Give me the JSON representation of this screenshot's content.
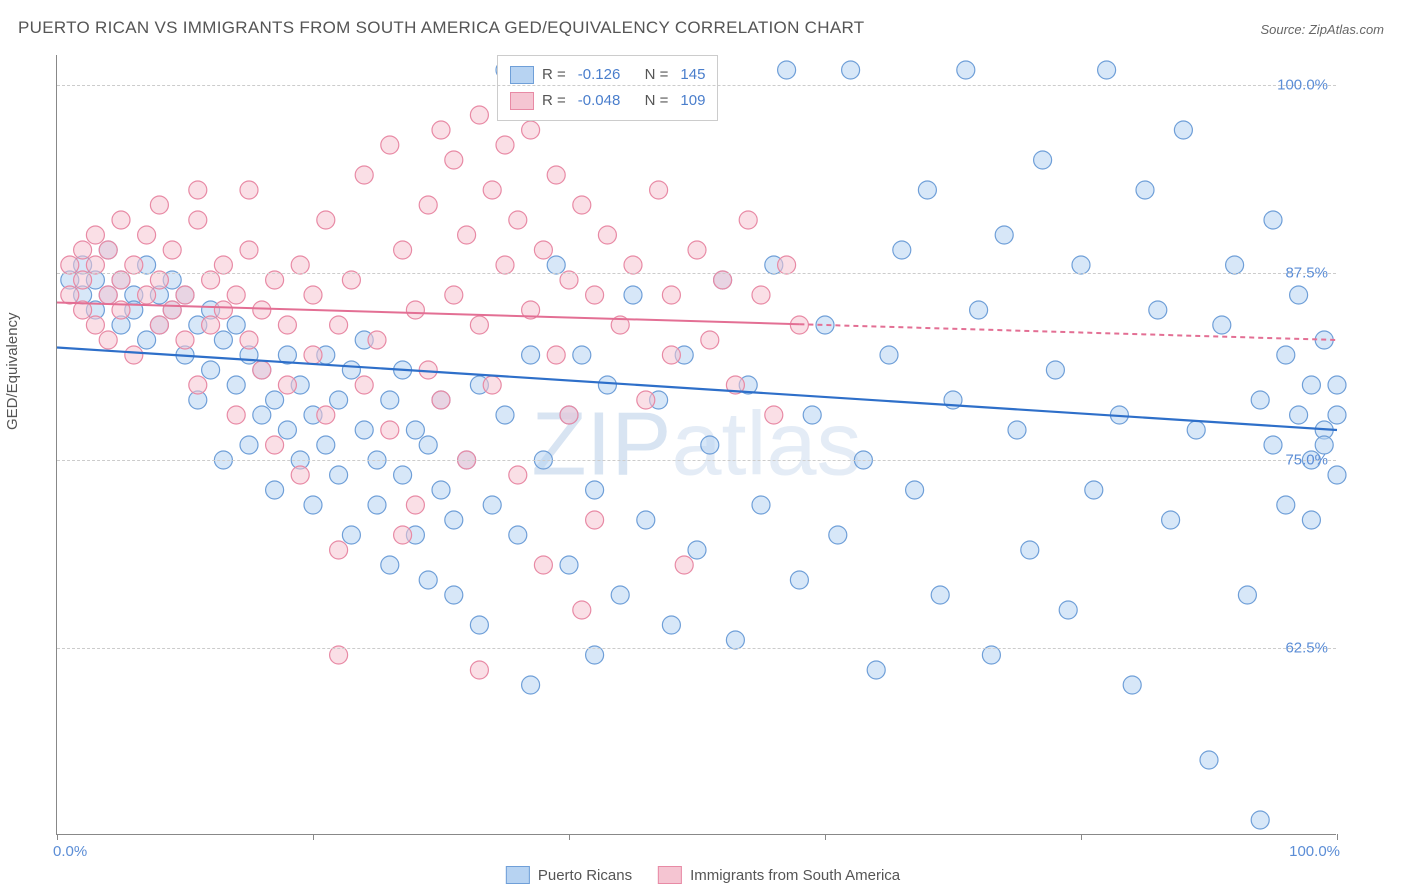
{
  "title": "PUERTO RICAN VS IMMIGRANTS FROM SOUTH AMERICA GED/EQUIVALENCY CORRELATION CHART",
  "source": "Source: ZipAtlas.com",
  "ylabel": "GED/Equivalency",
  "watermark_a": "ZIP",
  "watermark_b": "atlas",
  "chart": {
    "type": "scatter",
    "background_color": "#ffffff",
    "grid_color": "#cccccc",
    "border_color": "#888888",
    "xlim": [
      0,
      100
    ],
    "ylim": [
      50,
      102
    ],
    "y_ticks": [
      62.5,
      75.0,
      87.5,
      100.0
    ],
    "y_tick_labels": [
      "62.5%",
      "75.0%",
      "87.5%",
      "100.0%"
    ],
    "x_ticks": [
      0,
      20,
      40,
      60,
      80,
      100
    ],
    "x_end_labels": [
      "0.0%",
      "100.0%"
    ],
    "marker_radius": 9,
    "marker_opacity": 0.55,
    "marker_stroke_width": 1.2,
    "series": [
      {
        "name": "Puerto Ricans",
        "fill": "#b7d3f2",
        "stroke": "#6f9fd8",
        "R": "-0.126",
        "N": "145",
        "trend": {
          "x1": 0,
          "y1": 82.5,
          "x2": 100,
          "y2": 77.0,
          "color": "#2e6fc9",
          "width": 2.2,
          "dash_from_x": null
        },
        "points": [
          [
            1,
            87
          ],
          [
            2,
            86
          ],
          [
            2,
            88
          ],
          [
            3,
            85
          ],
          [
            3,
            87
          ],
          [
            4,
            86
          ],
          [
            4,
            89
          ],
          [
            5,
            84
          ],
          [
            5,
            87
          ],
          [
            6,
            86
          ],
          [
            6,
            85
          ],
          [
            7,
            88
          ],
          [
            7,
            83
          ],
          [
            8,
            86
          ],
          [
            8,
            84
          ],
          [
            9,
            85
          ],
          [
            9,
            87
          ],
          [
            10,
            82
          ],
          [
            10,
            86
          ],
          [
            11,
            84
          ],
          [
            11,
            79
          ],
          [
            12,
            85
          ],
          [
            12,
            81
          ],
          [
            13,
            83
          ],
          [
            13,
            75
          ],
          [
            14,
            80
          ],
          [
            14,
            84
          ],
          [
            15,
            76
          ],
          [
            15,
            82
          ],
          [
            16,
            78
          ],
          [
            16,
            81
          ],
          [
            17,
            79
          ],
          [
            17,
            73
          ],
          [
            18,
            82
          ],
          [
            18,
            77
          ],
          [
            19,
            75
          ],
          [
            19,
            80
          ],
          [
            20,
            78
          ],
          [
            20,
            72
          ],
          [
            21,
            82
          ],
          [
            21,
            76
          ],
          [
            22,
            74
          ],
          [
            22,
            79
          ],
          [
            23,
            81
          ],
          [
            23,
            70
          ],
          [
            24,
            77
          ],
          [
            24,
            83
          ],
          [
            25,
            75
          ],
          [
            25,
            72
          ],
          [
            26,
            79
          ],
          [
            26,
            68
          ],
          [
            27,
            74
          ],
          [
            27,
            81
          ],
          [
            28,
            70
          ],
          [
            28,
            77
          ],
          [
            29,
            76
          ],
          [
            29,
            67
          ],
          [
            30,
            73
          ],
          [
            30,
            79
          ],
          [
            31,
            71
          ],
          [
            31,
            66
          ],
          [
            32,
            75
          ],
          [
            33,
            80
          ],
          [
            33,
            64
          ],
          [
            34,
            72
          ],
          [
            35,
            78
          ],
          [
            35,
            101
          ],
          [
            36,
            70
          ],
          [
            37,
            82
          ],
          [
            37,
            60
          ],
          [
            38,
            75
          ],
          [
            39,
            88
          ],
          [
            40,
            68
          ],
          [
            40,
            78
          ],
          [
            41,
            82
          ],
          [
            42,
            73
          ],
          [
            42,
            62
          ],
          [
            43,
            80
          ],
          [
            44,
            66
          ],
          [
            45,
            86
          ],
          [
            46,
            71
          ],
          [
            47,
            79
          ],
          [
            48,
            64
          ],
          [
            49,
            82
          ],
          [
            50,
            69
          ],
          [
            51,
            76
          ],
          [
            52,
            87
          ],
          [
            53,
            63
          ],
          [
            54,
            80
          ],
          [
            55,
            72
          ],
          [
            56,
            88
          ],
          [
            57,
            101
          ],
          [
            58,
            67
          ],
          [
            59,
            78
          ],
          [
            60,
            84
          ],
          [
            61,
            70
          ],
          [
            62,
            101
          ],
          [
            63,
            75
          ],
          [
            64,
            61
          ],
          [
            65,
            82
          ],
          [
            66,
            89
          ],
          [
            67,
            73
          ],
          [
            68,
            93
          ],
          [
            69,
            66
          ],
          [
            70,
            79
          ],
          [
            71,
            101
          ],
          [
            72,
            85
          ],
          [
            73,
            62
          ],
          [
            74,
            90
          ],
          [
            75,
            77
          ],
          [
            76,
            69
          ],
          [
            77,
            95
          ],
          [
            78,
            81
          ],
          [
            79,
            65
          ],
          [
            80,
            88
          ],
          [
            81,
            73
          ],
          [
            82,
            101
          ],
          [
            83,
            78
          ],
          [
            84,
            60
          ],
          [
            85,
            93
          ],
          [
            86,
            85
          ],
          [
            87,
            71
          ],
          [
            88,
            97
          ],
          [
            89,
            77
          ],
          [
            90,
            55
          ],
          [
            91,
            84
          ],
          [
            92,
            88
          ],
          [
            93,
            66
          ],
          [
            94,
            79
          ],
          [
            94,
            51
          ],
          [
            95,
            91
          ],
          [
            95,
            76
          ],
          [
            96,
            72
          ],
          [
            96,
            82
          ],
          [
            97,
            78
          ],
          [
            97,
            86
          ],
          [
            98,
            75
          ],
          [
            98,
            80
          ],
          [
            98,
            71
          ],
          [
            99,
            77
          ],
          [
            99,
            83
          ],
          [
            99,
            76
          ],
          [
            100,
            78
          ],
          [
            100,
            74
          ],
          [
            100,
            80
          ]
        ]
      },
      {
        "name": "Immigrants from South America",
        "fill": "#f5c5d2",
        "stroke": "#e88aa5",
        "R": "-0.048",
        "N": "109",
        "trend": {
          "x1": 0,
          "y1": 85.5,
          "x2": 100,
          "y2": 83.0,
          "color": "#e36f94",
          "width": 2.0,
          "dash_from_x": 58
        },
        "points": [
          [
            1,
            88
          ],
          [
            1,
            86
          ],
          [
            2,
            89
          ],
          [
            2,
            85
          ],
          [
            2,
            87
          ],
          [
            3,
            90
          ],
          [
            3,
            84
          ],
          [
            3,
            88
          ],
          [
            4,
            86
          ],
          [
            4,
            89
          ],
          [
            4,
            83
          ],
          [
            5,
            87
          ],
          [
            5,
            91
          ],
          [
            5,
            85
          ],
          [
            6,
            88
          ],
          [
            6,
            82
          ],
          [
            7,
            86
          ],
          [
            7,
            90
          ],
          [
            8,
            84
          ],
          [
            8,
            87
          ],
          [
            9,
            85
          ],
          [
            9,
            89
          ],
          [
            10,
            83
          ],
          [
            10,
            86
          ],
          [
            11,
            91
          ],
          [
            11,
            80
          ],
          [
            12,
            87
          ],
          [
            12,
            84
          ],
          [
            13,
            85
          ],
          [
            13,
            88
          ],
          [
            14,
            78
          ],
          [
            14,
            86
          ],
          [
            15,
            83
          ],
          [
            15,
            89
          ],
          [
            16,
            81
          ],
          [
            16,
            85
          ],
          [
            17,
            87
          ],
          [
            17,
            76
          ],
          [
            18,
            84
          ],
          [
            18,
            80
          ],
          [
            19,
            88
          ],
          [
            19,
            74
          ],
          [
            20,
            82
          ],
          [
            20,
            86
          ],
          [
            21,
            78
          ],
          [
            21,
            91
          ],
          [
            22,
            84
          ],
          [
            22,
            69
          ],
          [
            23,
            87
          ],
          [
            24,
            80
          ],
          [
            24,
            94
          ],
          [
            25,
            83
          ],
          [
            26,
            77
          ],
          [
            26,
            96
          ],
          [
            27,
            89
          ],
          [
            28,
            85
          ],
          [
            28,
            72
          ],
          [
            29,
            92
          ],
          [
            29,
            81
          ],
          [
            30,
            97
          ],
          [
            30,
            79
          ],
          [
            31,
            86
          ],
          [
            31,
            95
          ],
          [
            32,
            90
          ],
          [
            32,
            75
          ],
          [
            33,
            98
          ],
          [
            33,
            84
          ],
          [
            34,
            93
          ],
          [
            34,
            80
          ],
          [
            35,
            96
          ],
          [
            35,
            88
          ],
          [
            36,
            91
          ],
          [
            36,
            74
          ],
          [
            37,
            85
          ],
          [
            37,
            97
          ],
          [
            38,
            89
          ],
          [
            38,
            68
          ],
          [
            39,
            94
          ],
          [
            39,
            82
          ],
          [
            40,
            87
          ],
          [
            40,
            78
          ],
          [
            41,
            92
          ],
          [
            42,
            86
          ],
          [
            42,
            71
          ],
          [
            43,
            90
          ],
          [
            44,
            84
          ],
          [
            45,
            88
          ],
          [
            46,
            79
          ],
          [
            47,
            93
          ],
          [
            48,
            86
          ],
          [
            49,
            68
          ],
          [
            50,
            89
          ],
          [
            51,
            83
          ],
          [
            52,
            87
          ],
          [
            53,
            80
          ],
          [
            54,
            91
          ],
          [
            55,
            86
          ],
          [
            56,
            78
          ],
          [
            57,
            88
          ],
          [
            58,
            84
          ],
          [
            33,
            61
          ],
          [
            22,
            62
          ],
          [
            36,
            100
          ],
          [
            27,
            70
          ],
          [
            41,
            65
          ],
          [
            15,
            93
          ],
          [
            11,
            93
          ],
          [
            8,
            92
          ],
          [
            48,
            82
          ]
        ]
      }
    ]
  },
  "legend_bottom": {
    "series1": "Puerto Ricans",
    "series2": "Immigrants from South America"
  },
  "legend_box": {
    "r_label": "R =",
    "n_label": "N ="
  }
}
